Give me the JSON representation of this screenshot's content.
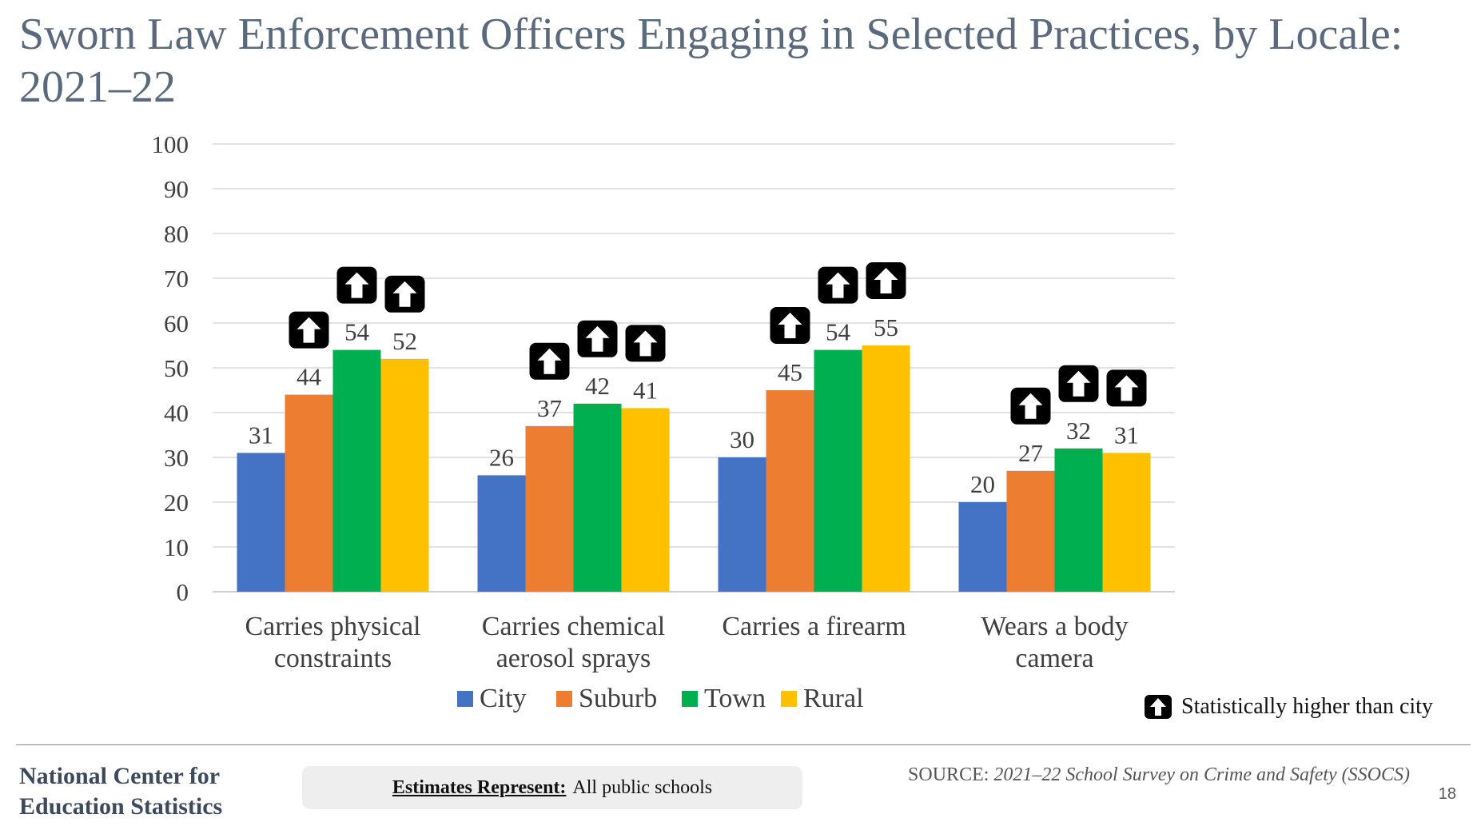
{
  "slide": {
    "title": "Sworn Law Enforcement Officers Engaging in Selected Practices, by Locale: 2021–22",
    "org_line1": "National Center for",
    "org_line2": "Education Statistics",
    "estimates_label": "Estimates Represent:",
    "estimates_value": "All public schools",
    "source_label": "SOURCE:",
    "source_value": "2021–22 School Survey on Crime and Safety (SSOCS)",
    "page_number": "18",
    "significance_note": "Statistically higher than city",
    "significance_icon": "up-arrow-icon"
  },
  "colors": {
    "City": "#4472c4",
    "Suburb": "#ed7d31",
    "Town": "#00b050",
    "Rural": "#ffc000",
    "grid": "#d9d9d9",
    "text": "#404040"
  },
  "chart_data": {
    "type": "bar",
    "title": "Sworn Law Enforcement Officers Engaging in Selected Practices, by Locale: 2021–22",
    "xlabel": "",
    "ylabel": "",
    "ylim": [
      0,
      100
    ],
    "yticks": [
      0,
      10,
      20,
      30,
      40,
      50,
      60,
      70,
      80,
      90,
      100
    ],
    "grid": true,
    "legend_position": "bottom",
    "categories": [
      [
        "Carries physical",
        "constraints"
      ],
      [
        "Carries chemical",
        "aerosol sprays"
      ],
      [
        "Carries a firearm"
      ],
      [
        "Wears a body",
        "camera"
      ]
    ],
    "series": [
      {
        "name": "City",
        "values": [
          31,
          26,
          30,
          20
        ],
        "higher_than_city": [
          false,
          false,
          false,
          false
        ]
      },
      {
        "name": "Suburb",
        "values": [
          44,
          37,
          45,
          27
        ],
        "higher_than_city": [
          true,
          true,
          true,
          true
        ]
      },
      {
        "name": "Town",
        "values": [
          54,
          42,
          54,
          32
        ],
        "higher_than_city": [
          true,
          true,
          true,
          true
        ]
      },
      {
        "name": "Rural",
        "values": [
          52,
          41,
          55,
          31
        ],
        "higher_than_city": [
          true,
          true,
          true,
          true
        ]
      }
    ]
  }
}
